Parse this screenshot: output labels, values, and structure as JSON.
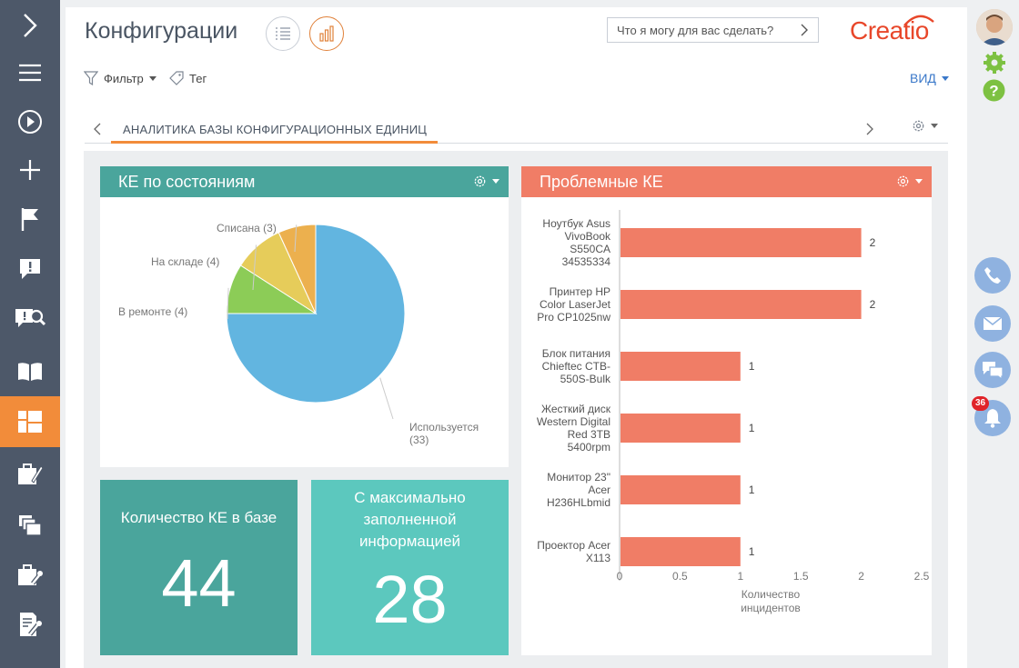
{
  "header": {
    "title": "Конфигурации",
    "search_placeholder": "Что я могу для вас сделать?",
    "logo_text": "Creatio"
  },
  "toolbar": {
    "filter_label": "Фильтр",
    "tag_label": "Тег",
    "view_label": "ВИД"
  },
  "tabs": {
    "active_label": "АНАЛИТИКА БАЗЫ КОНФИГУРАЦИОННЫХ ЕДИНИЦ"
  },
  "colors": {
    "accent_orange": "#f28c3a",
    "teal_dark": "#4aa59c",
    "teal_light": "#5cc8be",
    "salmon": "#f07d66",
    "pie_blue": "#62b5e0",
    "pie_green": "#8ccc57",
    "pie_yellow": "#e6cc5a",
    "pie_orange": "#ecb04e"
  },
  "panels": {
    "pie_title": "КЕ по состояниям",
    "bar_title": "Проблемные КЕ"
  },
  "metrics": {
    "count_label": "Количество КЕ в базе",
    "count_value": "44",
    "max_label_1": "С максимально",
    "max_label_2": "заполненной",
    "max_label_3": "информацией",
    "max_value": "28"
  },
  "notifications": {
    "badge_count": "36"
  },
  "chart_data": [
    {
      "type": "pie",
      "title": "КЕ по состояниям",
      "slices": [
        {
          "label": "Используется",
          "value": 33,
          "display": "(33)",
          "color": "#62b5e0"
        },
        {
          "label": "В ремонте",
          "value": 4,
          "display": "(4)",
          "color": "#8ccc57"
        },
        {
          "label": "На складе",
          "value": 4,
          "display": "(4)",
          "color": "#e6cc5a"
        },
        {
          "label": "Списана",
          "value": 3,
          "display": "(3)",
          "color": "#ecb04e"
        }
      ]
    },
    {
      "type": "bar",
      "orientation": "horizontal",
      "title": "Проблемные КЕ",
      "xlabel": "Количество инцидентов",
      "xlim": [
        0,
        2.5
      ],
      "xticks": [
        "0",
        "0.5",
        "1",
        "1.5",
        "2",
        "2.5"
      ],
      "categories": [
        [
          "Ноутбук Asus",
          "VivoBook",
          "S550CA",
          "34535334"
        ],
        [
          "Принтер HP",
          "Color LaserJet",
          "Pro CP1025nw"
        ],
        [
          "Блок питания",
          "Chieftec CTB-",
          "550S-Bulk"
        ],
        [
          "Жесткий диск",
          "Western Digital",
          "Red 3TB",
          "5400rpm"
        ],
        [
          "Монитор 23\"",
          "Acer",
          "H236HLbmid"
        ],
        [
          "Проектор Acer",
          "X113"
        ]
      ],
      "values": [
        2,
        2,
        1,
        1,
        1,
        1
      ],
      "color": "#f07d66"
    }
  ]
}
